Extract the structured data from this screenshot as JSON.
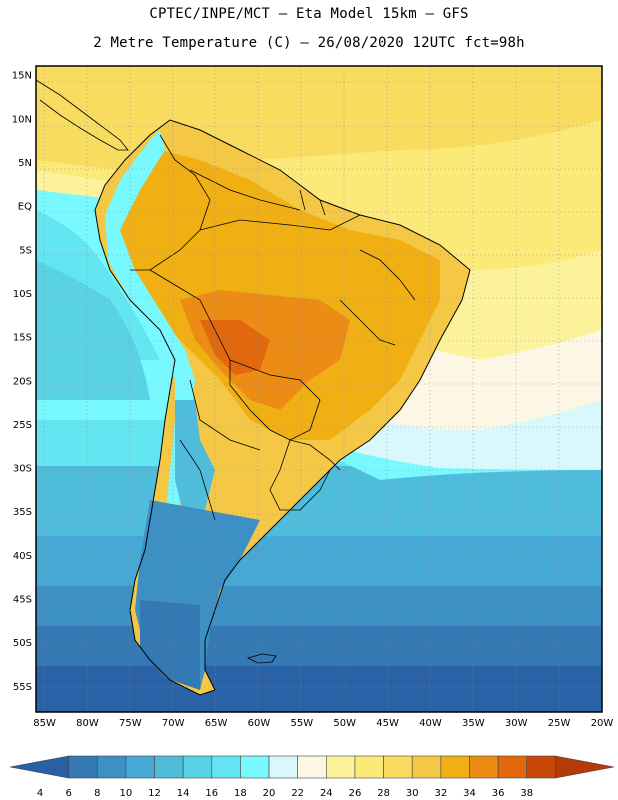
{
  "header": {
    "line1": "CPTEC/INPE/MCT –  Eta Model 15km – GFS",
    "line2": "2 Metre Temperature (C) – 26/08/2020 12UTC fct=98h"
  },
  "map": {
    "lat_labels": [
      "15N",
      "10N",
      "5N",
      "EQ",
      "5S",
      "10S",
      "15S",
      "20S",
      "25S",
      "30S",
      "35S",
      "40S",
      "45S",
      "50S",
      "55S"
    ],
    "lon_labels": [
      "85W",
      "80W",
      "75W",
      "70W",
      "65W",
      "60W",
      "55W",
      "50W",
      "45W",
      "40W",
      "35W",
      "30W",
      "25W",
      "20W"
    ],
    "lat_values": [
      15,
      10,
      5,
      0,
      -5,
      -10,
      -15,
      -20,
      -25,
      -30,
      -35,
      -40,
      -45,
      -50,
      -55
    ],
    "lon_values": [
      -85,
      -80,
      -75,
      -70,
      -65,
      -60,
      -55,
      -50,
      -45,
      -40,
      -35,
      -30,
      -25,
      -20
    ],
    "lat_range": [
      -58,
      16
    ],
    "lon_range": [
      -86,
      -20
    ]
  },
  "colorbar": {
    "ticks": [
      "4",
      "6",
      "8",
      "10",
      "12",
      "14",
      "16",
      "18",
      "20",
      "22",
      "24",
      "26",
      "28",
      "30",
      "32",
      "34",
      "36",
      "38"
    ],
    "colors": [
      "#2860a8",
      "#3478b4",
      "#3c90c4",
      "#46a8d4",
      "#50bcdc",
      "#5ad2e6",
      "#64e6f2",
      "#78f8ff",
      "#d8f8fc",
      "#fcf6e4",
      "#fcf29c",
      "#fcea78",
      "#f8dc60",
      "#f4c844",
      "#f0b014",
      "#ec8c14",
      "#e2680e",
      "#c8480a",
      "#b43a08"
    ]
  }
}
